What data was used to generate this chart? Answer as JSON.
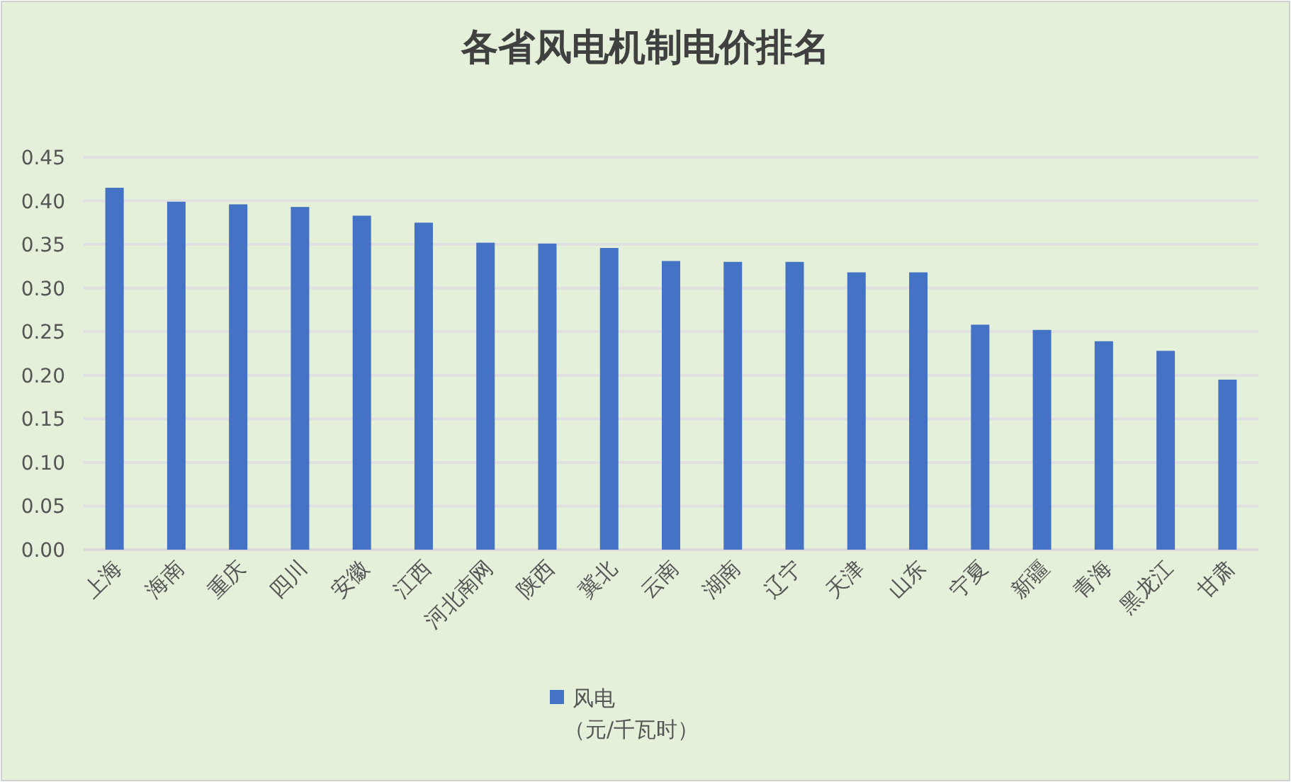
{
  "chart_data": {
    "type": "bar",
    "title": "各省风电机制电价排名",
    "categories": [
      "上海",
      "海南",
      "重庆",
      "四川",
      "安徽",
      "江西",
      "河北南网",
      "陕西",
      "冀北",
      "云南",
      "湖南",
      "辽宁",
      "天津",
      "山东",
      "宁夏",
      "新疆",
      "青海",
      "黑龙江",
      "甘肃"
    ],
    "series": [
      {
        "name": "风电（元/千瓦时）",
        "color": "#4472c4",
        "values": [
          0.415,
          0.399,
          0.396,
          0.393,
          0.383,
          0.375,
          0.352,
          0.351,
          0.346,
          0.331,
          0.33,
          0.33,
          0.318,
          0.318,
          0.258,
          0.252,
          0.239,
          0.228,
          0.195
        ]
      }
    ],
    "ylim": [
      0,
      0.45
    ],
    "yticks": [
      {
        "value": 0,
        "label": "0.00"
      },
      {
        "value": 0.05,
        "label": "0.05"
      },
      {
        "value": 0.1,
        "label": "0.10"
      },
      {
        "value": 0.15,
        "label": "0.15"
      },
      {
        "value": 0.2,
        "label": "0.20"
      },
      {
        "value": 0.25,
        "label": "0.25"
      },
      {
        "value": 0.3,
        "label": "0.30"
      },
      {
        "value": 0.35,
        "label": "0.35"
      },
      {
        "value": 0.4,
        "label": "0.40"
      },
      {
        "value": 0.45,
        "label": "0.45"
      }
    ],
    "grid": "y",
    "legend": "bottom"
  }
}
